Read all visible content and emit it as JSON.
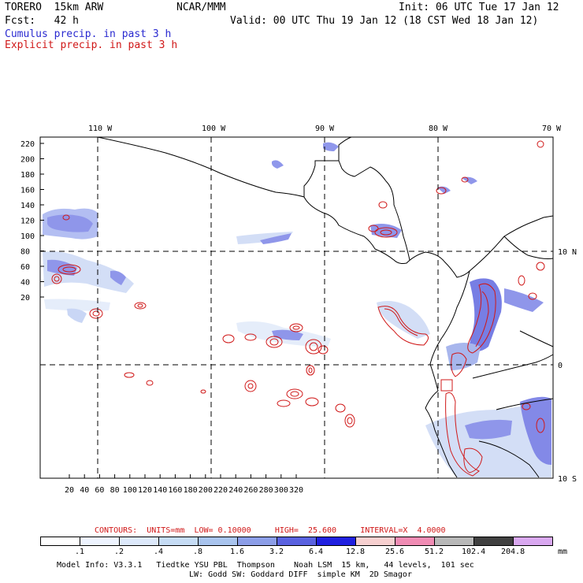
{
  "header": {
    "model": "TORERO  15km ARW",
    "org": "NCAR/MMM",
    "init": "Init: 06 UTC Tue 17 Jan 12",
    "fcst": "Fcst:   42 h",
    "valid": "Valid: 00 UTC Thu 19 Jan 12 (18 CST Wed 18 Jan 12)",
    "cumulus": "Cumulus precip. in past 3 h",
    "explicit": "Explicit precip. in past 3 h"
  },
  "axes": {
    "top": [
      "110 W",
      "100 W",
      "90 W",
      "80 W",
      "70 W"
    ],
    "right": [
      "10 N",
      "0",
      "10 S"
    ],
    "left": [
      "220",
      "200",
      "180",
      "160",
      "140",
      "120",
      "100",
      "80",
      "60",
      "40",
      "20"
    ],
    "bottom": [
      "20",
      "40",
      "60",
      "80",
      "100",
      "120",
      "140",
      "160",
      "180",
      "200",
      "220",
      "240",
      "260",
      "280",
      "300",
      "320"
    ]
  },
  "contours": {
    "label": "CONTOURS:",
    "units": "UNITS=mm",
    "low": "LOW= 0.10000",
    "high": "HIGH=  25.600",
    "interval": "INTERVAL=X  4.0000"
  },
  "legend": {
    "labels": [
      ".1",
      ".2",
      ".4",
      ".8",
      "1.6",
      "3.2",
      "6.4",
      "12.8",
      "25.6",
      "51.2",
      "102.4",
      "204.8"
    ],
    "unit": "mm",
    "colors": [
      "#ffffff",
      "#eef4ff",
      "#dde9fb",
      "#c6dcf5",
      "#a9c4ee",
      "#8c9ee8",
      "#5a62e0",
      "#2020e0",
      "#f7d0d0",
      "#f08cb4",
      "#b8b8b8",
      "#404040",
      "#d9a8f0"
    ]
  },
  "footer": {
    "line1": "Model Info: V3.3.1   Tiedtke YSU PBL  Thompson    Noah LSM  15 km,   44 levels,  101 sec",
    "line2": "LW: Godd SW: Goddard DIFF  simple KM  2D Smagor"
  }
}
